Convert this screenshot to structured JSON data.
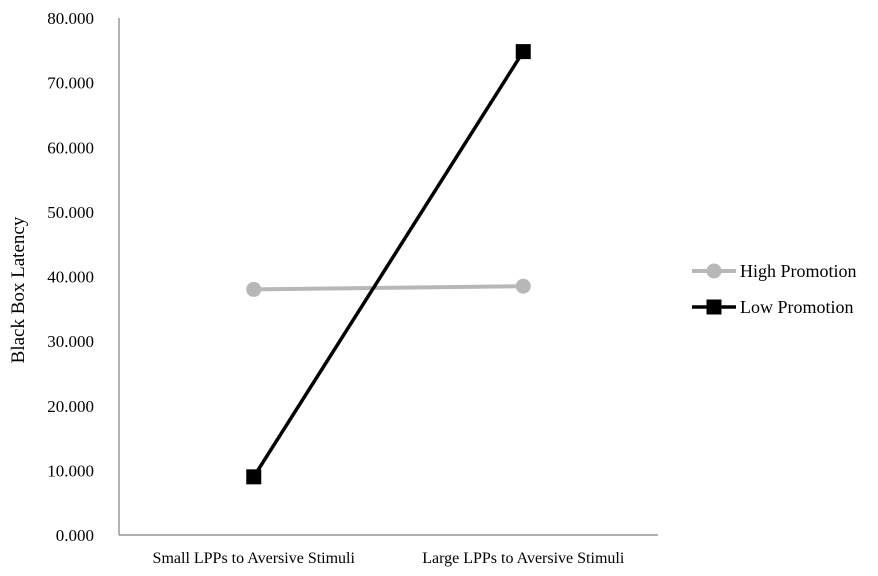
{
  "chart_data": {
    "type": "line",
    "title": "",
    "xlabel": "",
    "ylabel": "Black Box Latency",
    "ylim": [
      0,
      80
    ],
    "yticks": [
      "0.000",
      "10.000",
      "20.000",
      "30.000",
      "40.000",
      "50.000",
      "60.000",
      "70.000",
      "80.000"
    ],
    "categories": [
      "Small LPPs to Aversive Stimuli",
      "Large LPPs to Aversive Stimuli"
    ],
    "grid": false,
    "legend_position": "right",
    "series": [
      {
        "name": "High Promotion",
        "values": [
          38.0,
          38.5
        ],
        "color": "#b7b7b7",
        "marker": "circle"
      },
      {
        "name": "Low Promotion",
        "values": [
          9.0,
          74.8
        ],
        "color": "#000000",
        "marker": "square"
      }
    ]
  }
}
